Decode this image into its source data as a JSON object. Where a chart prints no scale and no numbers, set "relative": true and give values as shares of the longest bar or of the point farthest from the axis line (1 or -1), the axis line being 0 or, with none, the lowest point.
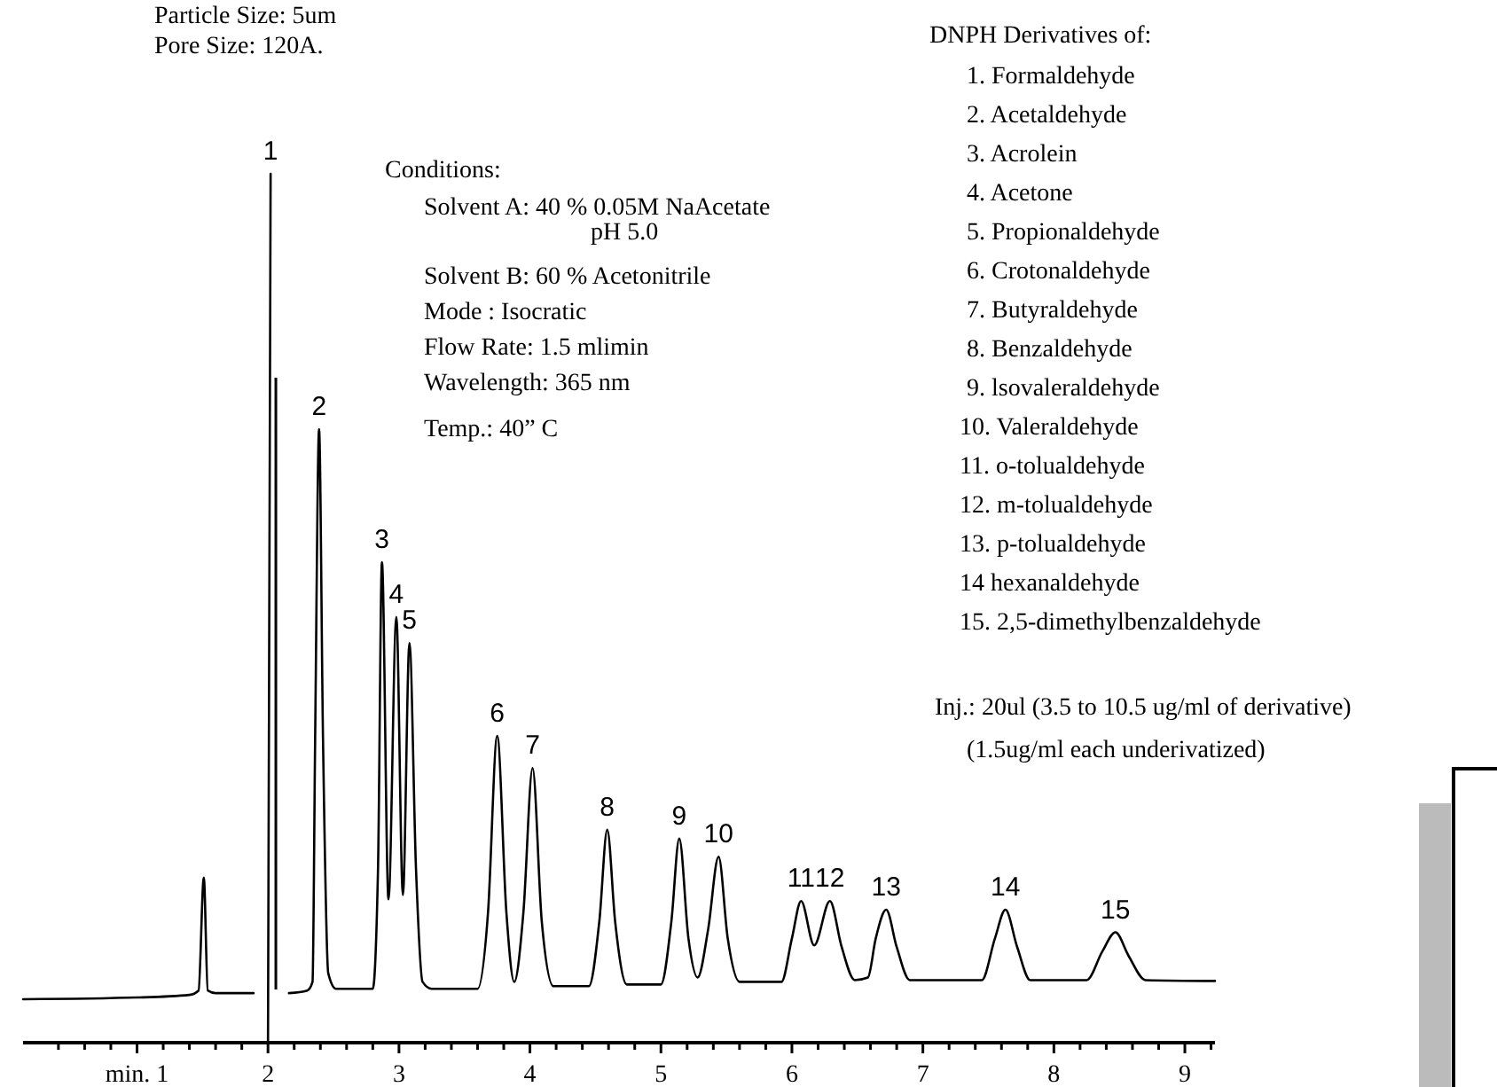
{
  "chart_data": {
    "type": "line",
    "relative": true,
    "color": "#000000",
    "marker": "none",
    "line_style": "solid",
    "xlim": [
      0.13,
      9.23
    ],
    "xticks": [
      {
        "value": 1,
        "label": "min. 1"
      },
      2,
      3,
      4,
      5,
      6,
      7,
      8,
      9,
      {
        "value": 0.4,
        "label": null
      },
      {
        "value": 0.6,
        "label": null
      },
      {
        "value": 0.8,
        "label": null
      },
      {
        "value": 1.2,
        "label": null
      },
      {
        "value": 1.4,
        "label": null
      },
      {
        "value": 1.6,
        "label": null
      },
      {
        "value": 1.8,
        "label": null
      },
      {
        "value": 2.2,
        "label": null
      },
      {
        "value": 2.4,
        "label": null
      },
      {
        "value": 2.6,
        "label": null
      },
      {
        "value": 2.8,
        "label": null
      },
      {
        "value": 3.2,
        "label": null
      },
      {
        "value": 3.4,
        "label": null
      },
      {
        "value": 3.6,
        "label": null
      },
      {
        "value": 3.8,
        "label": null
      },
      {
        "value": 4.2,
        "label": null
      },
      {
        "value": 4.4,
        "label": null
      },
      {
        "value": 4.6,
        "label": null
      },
      {
        "value": 4.8,
        "label": null
      },
      {
        "value": 5.2,
        "label": null
      },
      {
        "value": 5.4,
        "label": null
      },
      {
        "value": 5.6,
        "label": null
      },
      {
        "value": 5.8,
        "label": null
      },
      {
        "value": 6.2,
        "label": null
      },
      {
        "value": 6.4,
        "label": null
      },
      {
        "value": 6.6,
        "label": null
      },
      {
        "value": 6.8,
        "label": null
      },
      {
        "value": 7.2,
        "label": null
      },
      {
        "value": 7.4,
        "label": null
      },
      {
        "value": 7.6,
        "label": null
      },
      {
        "value": 7.8,
        "label": null
      },
      {
        "value": 8.2,
        "label": null
      },
      {
        "value": 8.4,
        "label": null
      },
      {
        "value": 8.6,
        "label": null
      },
      {
        "value": 8.8,
        "label": null
      },
      {
        "value": 9.2,
        "label": null
      }
    ],
    "x": [
      0.13,
      1.0,
      1.4,
      1.47,
      1.51,
      1.54,
      1.6,
      1.89,
      1.95,
      2.0,
      2.02,
      2.08,
      2.16,
      2.3,
      2.34,
      2.36,
      2.39,
      2.42,
      2.46,
      2.52,
      2.8,
      2.84,
      2.87,
      2.92,
      2.98,
      3.03,
      3.08,
      3.13,
      3.18,
      3.25,
      3.6,
      3.68,
      3.75,
      3.82,
      3.88,
      3.95,
      4.02,
      4.09,
      4.18,
      4.45,
      4.53,
      4.59,
      4.65,
      4.74,
      5.0,
      5.08,
      5.14,
      5.21,
      5.28,
      5.36,
      5.44,
      5.51,
      5.6,
      5.92,
      6.0,
      6.07,
      6.17,
      6.29,
      6.38,
      6.48,
      6.58,
      6.64,
      6.72,
      6.8,
      6.9,
      7.45,
      7.55,
      7.63,
      7.72,
      7.82,
      8.25,
      8.37,
      8.47,
      8.57,
      8.7,
      9.23
    ],
    "values": [
      0.05,
      0.052,
      0.055,
      0.06,
      0.19,
      0.06,
      0.057,
      0.057,
      null,
      0,
      1.0,
      null,
      0.057,
      0.06,
      0.07,
      0.35,
      0.706,
      0.35,
      0.08,
      0.062,
      0.062,
      0.2,
      0.553,
      0.165,
      0.49,
      0.17,
      0.46,
      0.2,
      0.07,
      0.062,
      0.062,
      0.15,
      0.353,
      0.15,
      0.07,
      0.15,
      0.316,
      0.14,
      0.065,
      0.065,
      0.14,
      0.245,
      0.14,
      0.067,
      0.067,
      0.14,
      0.235,
      0.12,
      0.075,
      0.13,
      0.214,
      0.12,
      0.07,
      0.07,
      0.12,
      0.163,
      0.112,
      0.163,
      0.11,
      0.072,
      0.075,
      0.12,
      0.153,
      0.11,
      0.072,
      0.072,
      0.12,
      0.153,
      0.11,
      0.072,
      0.072,
      0.105,
      0.127,
      0.1,
      0.072,
      0.071
    ],
    "ref_lines": [
      {
        "axis": "x",
        "value": 2.06,
        "color": "#000000"
      }
    ],
    "annotations": [
      {
        "text": "1",
        "x": 2.02,
        "y": 1.0
      },
      {
        "text": "2",
        "x": 2.39,
        "y": 0.706
      },
      {
        "text": "3",
        "x": 2.87,
        "y": 0.553
      },
      {
        "text": "4",
        "x": 2.98,
        "y": 0.49
      },
      {
        "text": "5",
        "x": 3.08,
        "y": 0.46
      },
      {
        "text": "6",
        "x": 3.75,
        "y": 0.353
      },
      {
        "text": "7",
        "x": 4.02,
        "y": 0.316
      },
      {
        "text": "8",
        "x": 4.59,
        "y": 0.245
      },
      {
        "text": "9",
        "x": 5.14,
        "y": 0.235
      },
      {
        "text": "10",
        "x": 5.44,
        "y": 0.214
      },
      {
        "text": "11",
        "x": 6.07,
        "y": 0.163
      },
      {
        "text": "12",
        "x": 6.29,
        "y": 0.163
      },
      {
        "text": "13",
        "x": 6.72,
        "y": 0.153
      },
      {
        "text": "14",
        "x": 7.63,
        "y": 0.153
      },
      {
        "text": "15",
        "x": 8.47,
        "y": 0.127
      },
      "Particle Size: 5um",
      "Pore Size: 120A.",
      "Conditions:",
      "Solvent A: 40 % 0.05M NaAcetate",
      "pH 5.0",
      "Solvent B: 60 %  Acetonitrile",
      "Mode : Isocratic",
      "Flow Rate: 1.5 mlimin",
      "Wavelength:  365  nm",
      "Temp.: 40” C",
      "DNPH Derivatives of:",
      "1.   Formaldehyde",
      "2.   Acetaldehyde",
      "3. Acrolein",
      "4.   Acetone",
      "5.   Propionaldehyde",
      "6.  Crotonaldehyde",
      "7.   Butyraldehyde",
      "8.   Benzaldehyde",
      "9.   lsovaleraldehyde",
      "10.   Valeraldehyde",
      "11.  o-tolualdehyde",
      "12.  m-tolualdehyde",
      "13.  p-tolualdehyde",
      "14  hexanaldehyde",
      "15.  2,5-dimethylbenzaldehyde",
      "Inj.: 20ul (3.5 to 10.5 ug/ml of derivative)",
      "(1.5ug/ml each underivatized)"
    ]
  }
}
